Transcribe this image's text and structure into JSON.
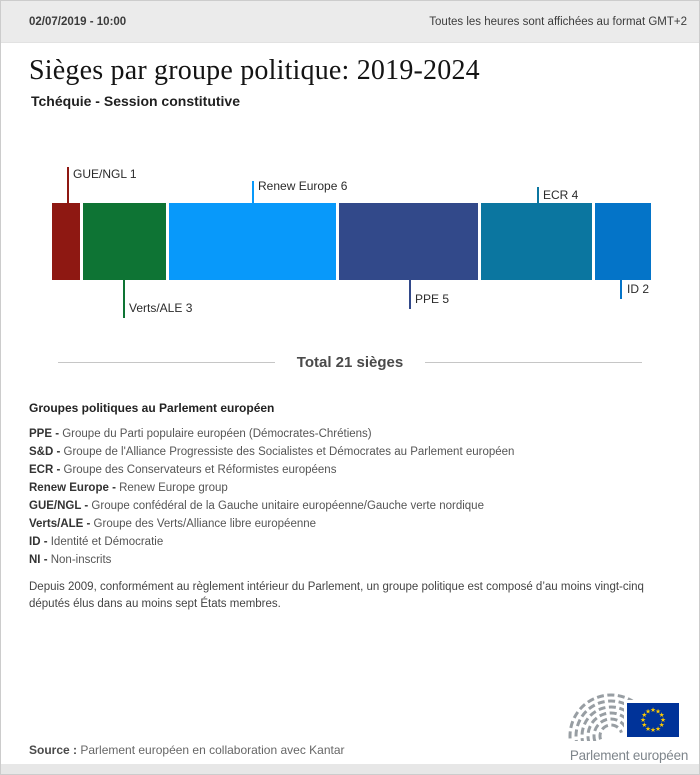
{
  "header": {
    "datetime": "02/07/2019 - 10:00",
    "timezone_note": "Toutes les heures sont affichées au format GMT+2"
  },
  "title": "Sièges par groupe politique: 2019-2024",
  "subtitle": "Tchéquie - Session constitutive",
  "total_label": "Total 21 sièges",
  "chart_data": {
    "type": "bar",
    "variant": "horizontal-stacked",
    "title": "Sièges par groupe politique: 2019-2024",
    "subtitle": "Tchéquie - Session constitutive",
    "total_seats": 21,
    "categories": [
      "GUE/NGL",
      "Verts/ALE",
      "Renew Europe",
      "PPE",
      "ECR",
      "ID"
    ],
    "values": [
      1,
      3,
      6,
      5,
      4,
      2
    ],
    "labels": [
      "GUE/NGL 1",
      "Verts/ALE 3",
      "Renew Europe 6",
      "PPE 5",
      "ECR 4",
      "ID 2"
    ],
    "colors": [
      "#8e1812",
      "#0e7434",
      "#0899fa",
      "#32498a",
      "#0b76a0",
      "#0474c8"
    ],
    "label_position": [
      "above",
      "below",
      "above",
      "below",
      "above",
      "below"
    ],
    "legend_position": "none",
    "grid": false
  },
  "legend": {
    "heading": "Groupes politiques au Parlement européen",
    "entries": [
      {
        "abbr": "PPE -",
        "desc": "Groupe du Parti populaire européen (Démocrates-Chrétiens)"
      },
      {
        "abbr": "S&D -",
        "desc": "Groupe de l'Alliance Progressiste des Socialistes et Démocrates au Parlement européen"
      },
      {
        "abbr": "ECR -",
        "desc": "Groupe des Conservateurs et Réformistes européens"
      },
      {
        "abbr": "Renew Europe -",
        "desc": "Renew Europe group"
      },
      {
        "abbr": "GUE/NGL -",
        "desc": "Groupe confédéral de la Gauche unitaire européenne/Gauche verte nordique"
      },
      {
        "abbr": "Verts/ALE -",
        "desc": "Groupe des Verts/Alliance libre européenne"
      },
      {
        "abbr": "ID -",
        "desc": "Identité et Démocratie"
      },
      {
        "abbr": "NI -",
        "desc": "Non-inscrits"
      }
    ],
    "note": "Depuis 2009, conformément au règlement intérieur du Parlement, un groupe politique est composé d’au moins vingt-cinq\ndéputés élus dans au moins sept États membres."
  },
  "footer": {
    "source_label": "Source :",
    "source_text": "Parlement européen en collaboration avec Kantar",
    "logo_text": "Parlement européen",
    "eu_flag_blue": "#003399",
    "eu_star_yellow": "#ffcc00",
    "logo_gray": "#989ea3"
  }
}
